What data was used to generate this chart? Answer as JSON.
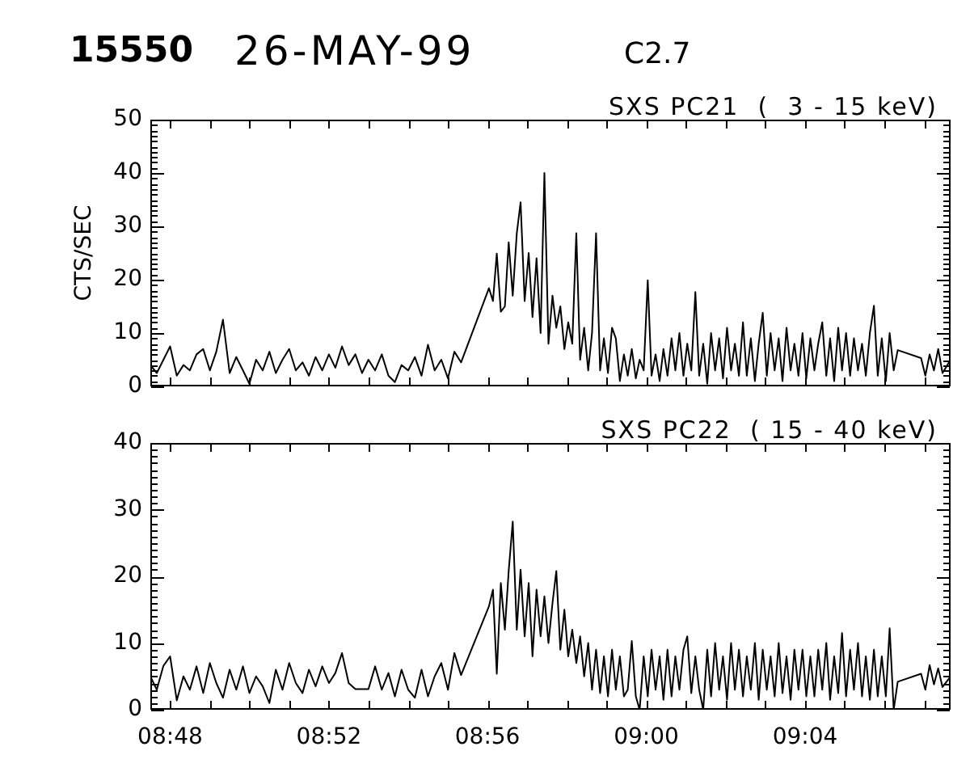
{
  "chart_data": [
    {
      "type": "line",
      "title": "SXS PC21  (  3 - 15 keV)",
      "ylabel": "CTS/SEC",
      "annotations": [
        "15550",
        "26-MAY-99",
        "C2.7"
      ],
      "tick_labels": "y",
      "color": "#000000",
      "x": [
        8.7917,
        8.7944,
        8.7972,
        8.8,
        8.8028,
        8.8056,
        8.8083,
        8.8111,
        8.8139,
        8.8167,
        8.8194,
        8.8222,
        8.825,
        8.8278,
        8.8306,
        8.8333,
        8.8361,
        8.8389,
        8.8417,
        8.8444,
        8.8472,
        8.85,
        8.8528,
        8.8556,
        8.8583,
        8.8611,
        8.8639,
        8.8667,
        8.8694,
        8.8722,
        8.875,
        8.8778,
        8.8806,
        8.8833,
        8.8861,
        8.8889,
        8.8917,
        8.8944,
        8.8972,
        8.9,
        8.9028,
        8.9056,
        8.9083,
        8.9111,
        8.9139,
        8.9167,
        8.9194,
        8.9222,
        8.9339,
        8.9356,
        8.9372,
        8.9389,
        8.9406,
        8.9422,
        8.9439,
        8.9456,
        8.9472,
        8.9489,
        8.9506,
        8.9522,
        8.9539,
        8.9556,
        8.9572,
        8.9589,
        8.9606,
        8.9622,
        8.9639,
        8.9656,
        8.9672,
        8.9689,
        8.9706,
        8.9722,
        8.9739,
        8.9756,
        8.9772,
        8.9789,
        8.9806,
        8.9822,
        8.9839,
        8.9856,
        8.9872,
        8.9889,
        8.9906,
        8.9922,
        8.9939,
        8.9956,
        8.9972,
        8.9989,
        9.0006,
        9.0022,
        9.0039,
        9.0056,
        9.0072,
        9.0089,
        9.0106,
        9.0122,
        9.0139,
        9.0156,
        9.0172,
        9.0189,
        9.0206,
        9.0222,
        9.0239,
        9.0256,
        9.0272,
        9.0289,
        9.0306,
        9.0322,
        9.0339,
        9.0356,
        9.0372,
        9.0389,
        9.0406,
        9.0422,
        9.0439,
        9.0456,
        9.0472,
        9.0489,
        9.0506,
        9.0522,
        9.0539,
        9.0556,
        9.0572,
        9.0589,
        9.0606,
        9.0622,
        9.0639,
        9.0656,
        9.0672,
        9.0689,
        9.0706,
        9.0722,
        9.0739,
        9.0756,
        9.0772,
        9.0789,
        9.0806,
        9.0822,
        9.0839,
        9.0856,
        9.0872,
        9.0889,
        9.0906,
        9.0922,
        9.0939,
        9.0956,
        9.0972,
        9.0989,
        9.1006,
        9.1022,
        9.1039,
        9.1056,
        9.1154,
        9.1172,
        9.119,
        9.1208,
        9.1226,
        9.1244,
        9.1278
      ],
      "values": [
        4,
        2.5,
        5,
        7.5,
        2,
        4,
        3,
        6,
        7,
        3,
        6.5,
        12.5,
        2.5,
        5.5,
        3,
        0.5,
        5,
        3,
        6.5,
        2.5,
        5,
        7,
        3,
        4.5,
        2,
        5.5,
        3,
        6,
        3.5,
        7.5,
        4,
        6,
        2.5,
        5,
        3,
        6,
        2,
        0.8,
        4,
        3,
        5.5,
        2,
        7.8,
        3,
        5,
        1.5,
        6.5,
        4.5,
        18.4,
        16,
        24.9,
        14,
        15,
        27,
        17,
        28.7,
        34.5,
        16,
        25,
        13,
        24,
        10,
        40,
        8,
        17,
        11,
        15,
        7,
        12,
        8,
        28.7,
        5,
        11,
        3,
        10,
        28.7,
        3,
        9,
        2.5,
        11,
        9,
        1,
        6,
        2,
        7,
        1.5,
        5,
        3,
        19.9,
        2,
        6,
        1,
        7,
        2,
        9,
        3,
        10,
        2,
        8,
        3,
        17.7,
        2,
        8,
        0.5,
        10,
        3,
        9,
        1.5,
        11,
        3,
        8,
        2,
        12,
        2,
        9,
        1,
        8,
        13.8,
        2,
        10,
        3,
        9,
        1,
        11,
        3,
        8,
        2,
        10,
        1.5,
        9,
        3,
        8,
        12,
        2,
        9,
        1,
        11,
        3,
        10,
        2,
        9,
        3,
        8,
        2,
        10,
        15.1,
        2,
        9,
        1,
        10,
        3,
        6.8,
        5.3,
        2,
        6,
        3,
        7,
        2.5,
        5
      ],
      "xlim": [
        8.7917,
        9.1278
      ],
      "xticks": [
        {
          "value": 8.8,
          "label": null
        },
        {
          "value": 8.8167,
          "label": null
        },
        {
          "value": 8.8333,
          "label": null
        },
        {
          "value": 8.85,
          "label": null
        },
        {
          "value": 8.8667,
          "label": null
        },
        {
          "value": 8.8833,
          "label": null
        },
        {
          "value": 8.9,
          "label": null
        },
        {
          "value": 8.9167,
          "label": null
        },
        {
          "value": 8.9333,
          "label": null
        },
        {
          "value": 8.95,
          "label": null
        },
        {
          "value": 8.9667,
          "label": null
        },
        {
          "value": 8.9833,
          "label": null
        },
        {
          "value": 9,
          "label": null
        },
        {
          "value": 9.0167,
          "label": null
        },
        {
          "value": 9.0333,
          "label": null
        },
        {
          "value": 9.05,
          "label": null
        },
        {
          "value": 9.0667,
          "label": null
        },
        {
          "value": 9.0833,
          "label": null
        },
        {
          "value": 9.1,
          "label": null
        },
        {
          "value": 9.1167,
          "label": null
        }
      ],
      "ylim": [
        0,
        50
      ],
      "yticks": [
        0,
        {
          "value": 1,
          "label": null
        },
        {
          "value": 2,
          "label": null
        },
        {
          "value": 3,
          "label": null
        },
        {
          "value": 4,
          "label": null
        },
        {
          "value": 5,
          "label": null
        },
        {
          "value": 6,
          "label": null
        },
        {
          "value": 7,
          "label": null
        },
        {
          "value": 8,
          "label": null
        },
        {
          "value": 9,
          "label": null
        },
        10,
        {
          "value": 11,
          "label": null
        },
        {
          "value": 12,
          "label": null
        },
        {
          "value": 13,
          "label": null
        },
        {
          "value": 14,
          "label": null
        },
        {
          "value": 15,
          "label": null
        },
        {
          "value": 16,
          "label": null
        },
        {
          "value": 17,
          "label": null
        },
        {
          "value": 18,
          "label": null
        },
        {
          "value": 19,
          "label": null
        },
        20,
        {
          "value": 21,
          "label": null
        },
        {
          "value": 22,
          "label": null
        },
        {
          "value": 23,
          "label": null
        },
        {
          "value": 24,
          "label": null
        },
        {
          "value": 25,
          "label": null
        },
        {
          "value": 26,
          "label": null
        },
        {
          "value": 27,
          "label": null
        },
        {
          "value": 28,
          "label": null
        },
        {
          "value": 29,
          "label": null
        },
        30,
        {
          "value": 31,
          "label": null
        },
        {
          "value": 32,
          "label": null
        },
        {
          "value": 33,
          "label": null
        },
        {
          "value": 34,
          "label": null
        },
        {
          "value": 35,
          "label": null
        },
        {
          "value": 36,
          "label": null
        },
        {
          "value": 37,
          "label": null
        },
        {
          "value": 38,
          "label": null
        },
        {
          "value": 39,
          "label": null
        },
        40,
        {
          "value": 41,
          "label": null
        },
        {
          "value": 42,
          "label": null
        },
        {
          "value": 43,
          "label": null
        },
        {
          "value": 44,
          "label": null
        },
        {
          "value": 45,
          "label": null
        },
        {
          "value": 46,
          "label": null
        },
        {
          "value": 47,
          "label": null
        },
        {
          "value": 48,
          "label": null
        },
        {
          "value": 49,
          "label": null
        },
        50
      ]
    },
    {
      "type": "line",
      "title": "SXS PC22  ( 15 - 40 keV)",
      "color": "#000000",
      "x": [
        8.7917,
        8.7944,
        8.7972,
        8.8,
        8.8028,
        8.8056,
        8.8083,
        8.8111,
        8.8139,
        8.8167,
        8.8194,
        8.8222,
        8.825,
        8.8278,
        8.8306,
        8.8333,
        8.8361,
        8.8389,
        8.8417,
        8.8444,
        8.8472,
        8.85,
        8.8528,
        8.8556,
        8.8583,
        8.8611,
        8.8639,
        8.8667,
        8.8694,
        8.8722,
        8.875,
        8.8778,
        8.8806,
        8.8833,
        8.8861,
        8.8889,
        8.8917,
        8.8944,
        8.8972,
        8.9,
        8.9028,
        8.9056,
        8.9083,
        8.9111,
        8.9139,
        8.9167,
        8.9194,
        8.9222,
        8.9339,
        8.9356,
        8.9372,
        8.9389,
        8.9406,
        8.9422,
        8.9439,
        8.9456,
        8.9472,
        8.9489,
        8.9506,
        8.9522,
        8.9539,
        8.9556,
        8.9572,
        8.9589,
        8.9606,
        8.9622,
        8.9639,
        8.9656,
        8.9672,
        8.9689,
        8.9706,
        8.9722,
        8.9739,
        8.9756,
        8.9772,
        8.9789,
        8.9806,
        8.9822,
        8.9839,
        8.9856,
        8.9872,
        8.9889,
        8.9906,
        8.9922,
        8.9939,
        8.9956,
        8.9972,
        8.9989,
        9.0006,
        9.0022,
        9.0039,
        9.0056,
        9.0072,
        9.0089,
        9.0106,
        9.0122,
        9.0139,
        9.0156,
        9.0172,
        9.0189,
        9.0206,
        9.0222,
        9.0239,
        9.0256,
        9.0272,
        9.0289,
        9.0306,
        9.0322,
        9.0339,
        9.0356,
        9.0372,
        9.0389,
        9.0406,
        9.0422,
        9.0439,
        9.0456,
        9.0472,
        9.0489,
        9.0506,
        9.0522,
        9.0539,
        9.0556,
        9.0572,
        9.0589,
        9.0606,
        9.0622,
        9.0639,
        9.0656,
        9.0672,
        9.0689,
        9.0706,
        9.0722,
        9.0739,
        9.0756,
        9.0772,
        9.0789,
        9.0806,
        9.0822,
        9.0839,
        9.0856,
        9.0872,
        9.0889,
        9.0906,
        9.0922,
        9.0939,
        9.0956,
        9.0972,
        9.0989,
        9.1006,
        9.1022,
        9.1039,
        9.1056,
        9.1154,
        9.1172,
        9.119,
        9.1208,
        9.1226,
        9.1244,
        9.1278
      ],
      "values": [
        5,
        3,
        6.6,
        8,
        1.4,
        5,
        3,
        6.5,
        2.5,
        7,
        4,
        1.8,
        6,
        3,
        6.5,
        2.5,
        5,
        3.5,
        1,
        6,
        3,
        7,
        4,
        2.5,
        6,
        3.5,
        6.5,
        4,
        5.5,
        8.5,
        4,
        3.1,
        3.1,
        3.1,
        6.5,
        3,
        5.5,
        2,
        6,
        3,
        1.8,
        6,
        2,
        5,
        7,
        3,
        8.5,
        5.2,
        15.5,
        18,
        5.4,
        19,
        12,
        20.8,
        28.2,
        12,
        21,
        11,
        19,
        8,
        18,
        11,
        17,
        10,
        16,
        20.8,
        9,
        15,
        8,
        12,
        7,
        11,
        5,
        10,
        3,
        9,
        2.5,
        8,
        2,
        9,
        3,
        8,
        2,
        3,
        10.3,
        2,
        0,
        8,
        2,
        9,
        3,
        8,
        1.5,
        9,
        2,
        8,
        3,
        9,
        11,
        2.5,
        8,
        3,
        0,
        9,
        2,
        10,
        3,
        8,
        1.5,
        10,
        3,
        9,
        2,
        8,
        3,
        10,
        1.5,
        9,
        3,
        8,
        2,
        10,
        2.5,
        8,
        1.5,
        9,
        3,
        9,
        2,
        8,
        2,
        9,
        3,
        10,
        1.5,
        8,
        2.5,
        11.5,
        2,
        9,
        3,
        10,
        2,
        8,
        1.5,
        9,
        2,
        8,
        2,
        12.2,
        0,
        4.2,
        5.4,
        3,
        6.7,
        3.8,
        6.2,
        3.4,
        5
      ],
      "xlim": [
        8.7917,
        9.1278
      ],
      "xticks": [
        {
          "value": 8.8,
          "label": "08:48"
        },
        {
          "value": 8.8167,
          "label": null
        },
        {
          "value": 8.8333,
          "label": null
        },
        {
          "value": 8.85,
          "label": null
        },
        {
          "value": 8.8667,
          "label": "08:52"
        },
        {
          "value": 8.8833,
          "label": null
        },
        {
          "value": 8.9,
          "label": null
        },
        {
          "value": 8.9167,
          "label": null
        },
        {
          "value": 8.9333,
          "label": "08:56"
        },
        {
          "value": 8.95,
          "label": null
        },
        {
          "value": 8.9667,
          "label": null
        },
        {
          "value": 8.9833,
          "label": null
        },
        {
          "value": 9,
          "label": "09:00"
        },
        {
          "value": 9.0167,
          "label": null
        },
        {
          "value": 9.0333,
          "label": null
        },
        {
          "value": 9.05,
          "label": null
        },
        {
          "value": 9.0667,
          "label": "09:04"
        },
        {
          "value": 9.0833,
          "label": null
        },
        {
          "value": 9.1,
          "label": null
        },
        {
          "value": 9.1167,
          "label": null
        }
      ],
      "ylim": [
        0,
        40
      ],
      "yticks": [
        0,
        {
          "value": 1,
          "label": null
        },
        {
          "value": 2,
          "label": null
        },
        {
          "value": 3,
          "label": null
        },
        {
          "value": 4,
          "label": null
        },
        {
          "value": 5,
          "label": null
        },
        {
          "value": 6,
          "label": null
        },
        {
          "value": 7,
          "label": null
        },
        {
          "value": 8,
          "label": null
        },
        {
          "value": 9,
          "label": null
        },
        10,
        {
          "value": 11,
          "label": null
        },
        {
          "value": 12,
          "label": null
        },
        {
          "value": 13,
          "label": null
        },
        {
          "value": 14,
          "label": null
        },
        {
          "value": 15,
          "label": null
        },
        {
          "value": 16,
          "label": null
        },
        {
          "value": 17,
          "label": null
        },
        {
          "value": 18,
          "label": null
        },
        {
          "value": 19,
          "label": null
        },
        20,
        {
          "value": 21,
          "label": null
        },
        {
          "value": 22,
          "label": null
        },
        {
          "value": 23,
          "label": null
        },
        {
          "value": 24,
          "label": null
        },
        {
          "value": 25,
          "label": null
        },
        {
          "value": 26,
          "label": null
        },
        {
          "value": 27,
          "label": null
        },
        {
          "value": 28,
          "label": null
        },
        {
          "value": 29,
          "label": null
        },
        30,
        {
          "value": 31,
          "label": null
        },
        {
          "value": 32,
          "label": null
        },
        {
          "value": 33,
          "label": null
        },
        {
          "value": 34,
          "label": null
        },
        {
          "value": 35,
          "label": null
        },
        {
          "value": 36,
          "label": null
        },
        {
          "value": 37,
          "label": null
        },
        {
          "value": 38,
          "label": null
        },
        {
          "value": 39,
          "label": null
        },
        40
      ]
    }
  ]
}
